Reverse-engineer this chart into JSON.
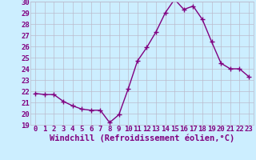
{
  "x": [
    0,
    1,
    2,
    3,
    4,
    5,
    6,
    7,
    8,
    9,
    10,
    11,
    12,
    13,
    14,
    15,
    16,
    17,
    18,
    19,
    20,
    21,
    22,
    23
  ],
  "y": [
    21.8,
    21.7,
    21.7,
    21.1,
    20.7,
    20.4,
    20.3,
    20.3,
    19.2,
    19.9,
    22.2,
    24.7,
    25.9,
    27.3,
    29.0,
    30.2,
    29.3,
    29.6,
    28.4,
    26.4,
    24.5,
    24.0,
    24.0,
    23.3
  ],
  "line_color": "#800080",
  "marker": "+",
  "marker_size": 5,
  "bg_color": "#cceeff",
  "grid_color": "#bbbbcc",
  "xlabel": "Windchill (Refroidissement éolien,°C)",
  "ylabel": "",
  "ylim": [
    19,
    30
  ],
  "yticks": [
    19,
    20,
    21,
    22,
    23,
    24,
    25,
    26,
    27,
    28,
    29,
    30
  ],
  "xticks": [
    0,
    1,
    2,
    3,
    4,
    5,
    6,
    7,
    8,
    9,
    10,
    11,
    12,
    13,
    14,
    15,
    16,
    17,
    18,
    19,
    20,
    21,
    22,
    23
  ],
  "xlabel_fontsize": 7.5,
  "tick_fontsize": 6.5,
  "line_width": 1.0,
  "marker_size_pt": 4
}
